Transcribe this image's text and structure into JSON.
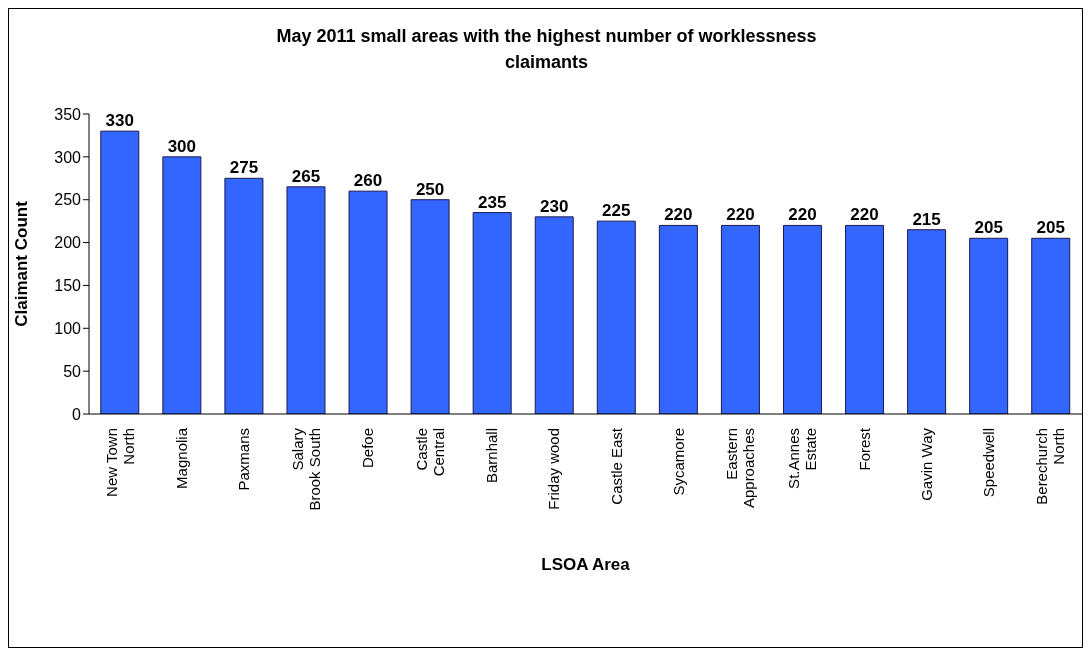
{
  "chart_data": {
    "type": "bar",
    "title": "May 2011 small areas with the highest number of worklessness claimants",
    "xlabel": "LSOA Area",
    "ylabel": "Claimant Count",
    "categories": [
      "New Town North",
      "Magnolia",
      "Paxmans",
      "Salary Brook South",
      "Defoe",
      "Castle Central",
      "Barnhall",
      "Friday wood",
      "Castle East",
      "Sycamore",
      "Eastern Approaches",
      "St.Annes Estate",
      "Forest",
      "Gavin Way",
      "Speedwell",
      "Berechurch North"
    ],
    "values": [
      330,
      300,
      275,
      265,
      260,
      250,
      235,
      230,
      225,
      220,
      220,
      220,
      220,
      215,
      205,
      205
    ],
    "color": "#3366ff",
    "ylim": [
      0,
      350
    ],
    "yticks": [
      0,
      50,
      100,
      150,
      200,
      250,
      300,
      350
    ],
    "data_labels": true,
    "grid": false,
    "legend": false
  }
}
